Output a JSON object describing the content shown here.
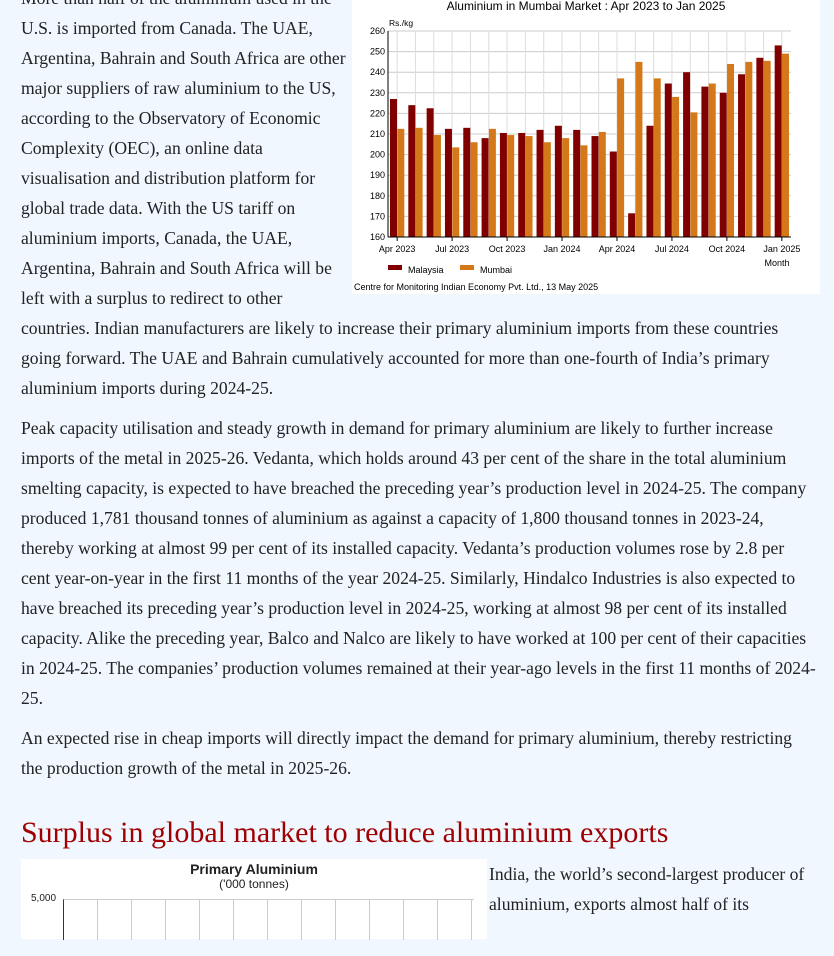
{
  "paragraphs": [
    "More than half of the aluminium used in the U.S. is imported from Canada. The UAE, Argentina, Bahrain and South Africa are other major suppliers of raw aluminium to the US, according to the Observatory of Economic Complexity (OEC), an online data visualisation and distribution platform for global trade data. With the US tariff on aluminium imports, Canada, the UAE, Argentina, Bahrain and South Africa will be left with a surplus to redirect to other countries. Indian manufacturers are likely to increase their primary aluminium imports from these countries going forward. The UAE and Bahrain cumulatively accounted for more than one-fourth of India’s primary aluminium imports during 2024-25.",
    "Peak capacity utilisation and steady growth in demand for primary aluminium are likely to further increase imports of the metal in 2025-26. Vedanta, which holds around 43 per cent of the share in the total aluminium smelting capacity, is expected to have breached the preceding year’s production level in 2024-25. The company produced 1,781 thousand tonnes of aluminium as against a capacity of 1,800 thousand tonnes in 2023-24, thereby working at almost 99 per cent of its installed capacity. Vedanta’s production volumes rose by 2.8 per cent year-on-year in the first 11 months of the year 2024-25. Similarly, Hindalco Industries is also expected to have breached its preceding year’s production level in 2024-25, working at almost 98 per cent of its installed capacity. Alike the preceding year, Balco and Nalco are likely to have worked at 100 per cent of their capacities in 2024-25. The companies’ production volumes remained at their year-ago levels in the first 11 months of 2024-25.",
    "An expected rise in cheap imports will directly impact the demand for primary aluminium, thereby restricting the production growth of the metal in 2025-26."
  ],
  "heading": "Surplus in global market to reduce aluminium exports",
  "para_after": "India, the world’s second-largest producer of aluminium, exports almost half of its",
  "chart2": {
    "title": "Primary Aluminium",
    "subtitle": "('000 tonnes)",
    "ytick_top": "5,000"
  },
  "chart_data": {
    "type": "bar",
    "title": "Aluminium in Mumbai Market : Apr 2023 to Jan 2025",
    "ylabel": "Rs./kg",
    "xlabel": "Month",
    "ylim": [
      160,
      260
    ],
    "yticks": [
      "160",
      "170",
      "180",
      "190",
      "200",
      "210",
      "220",
      "230",
      "240",
      "250",
      "260"
    ],
    "xtick_labels": [
      "Apr 2023",
      "Jul 2023",
      "Oct 2023",
      "Jan 2024",
      "Apr 2024",
      "Jul 2024",
      "Oct 2024",
      "Jan 2025"
    ],
    "categories": [
      "Apr 2023",
      "May 2023",
      "Jun 2023",
      "Jul 2023",
      "Aug 2023",
      "Sep 2023",
      "Oct 2023",
      "Nov 2023",
      "Dec 2023",
      "Jan 2024",
      "Feb 2024",
      "Mar 2024",
      "Apr 2024",
      "May 2024",
      "Jun 2024",
      "Jul 2024",
      "Aug 2024",
      "Sep 2024",
      "Oct 2024",
      "Nov 2024",
      "Dec 2024",
      "Jan 2025"
    ],
    "series": [
      {
        "name": "Malaysia",
        "color": "#800000",
        "values": [
          227,
          224,
          222.5,
          212.5,
          213,
          208,
          210.5,
          210.5,
          212,
          214,
          212,
          209,
          201.5,
          171.5,
          214,
          234.5,
          240,
          233,
          230,
          239,
          247,
          253
        ]
      },
      {
        "name": "Mumbai",
        "color": "#d4781a",
        "values": [
          212.5,
          213,
          209.5,
          203.5,
          206,
          212.5,
          209.5,
          209,
          206,
          208,
          204.5,
          211,
          237,
          245,
          237,
          228,
          220.5,
          234.5,
          244,
          245,
          245.5,
          249
        ]
      }
    ],
    "legend": "bottom-left",
    "source": "Centre for Monitoring Indian Economy Pvt. Ltd., 13 May 2025"
  }
}
